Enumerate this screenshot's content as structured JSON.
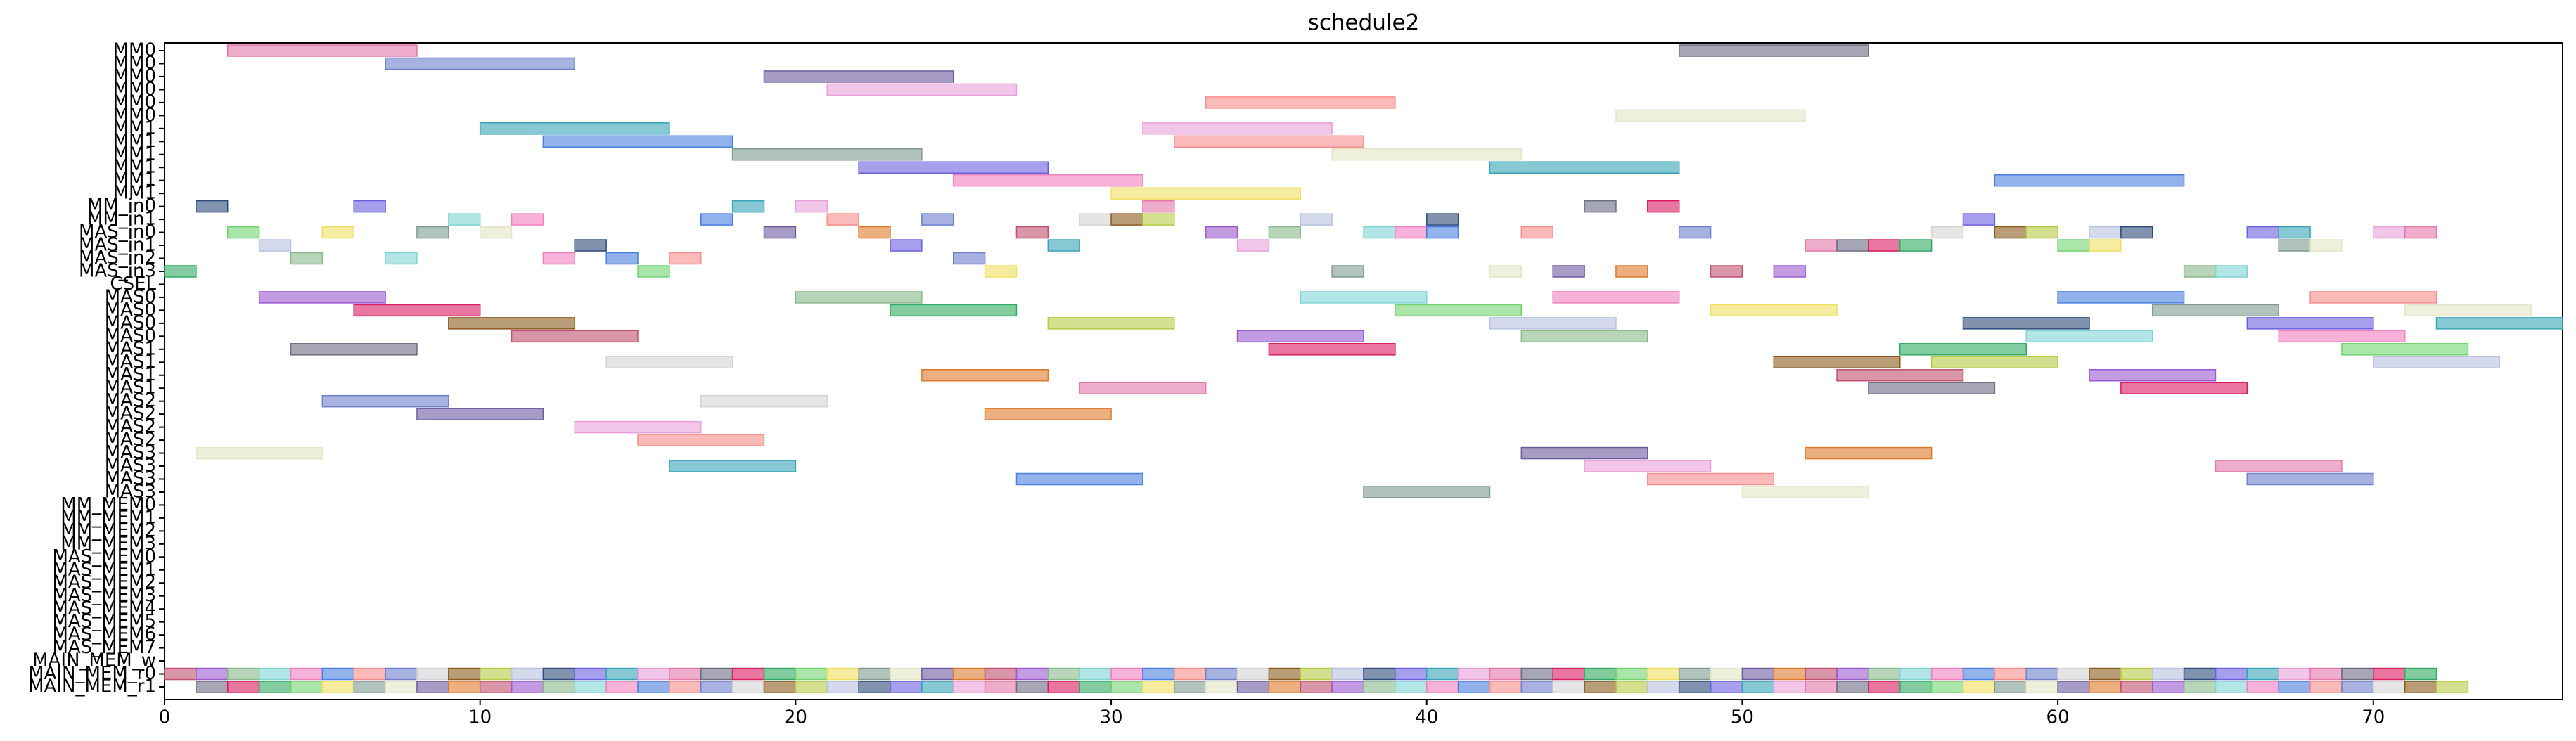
{
  "chart_data": {
    "type": "gantt",
    "title": "schedule2",
    "xlim": [
      0,
      76
    ],
    "xticks": [
      0,
      10,
      20,
      30,
      40,
      50,
      60,
      70
    ],
    "palette": [
      "#e377a9",
      "#b8c2e0",
      "#f78c8c",
      "#9b59d0",
      "#7f9a8f",
      "#6b6b83",
      "#2d4a7a",
      "#6e7fcc",
      "#88b98a",
      "#e2e6c4",
      "#d81b60",
      "#6b5fe0",
      "#d6d3d3",
      "#7fd3d3",
      "#6d5a9e",
      "#2faa60",
      "#35a4b7",
      "#8b5a1e",
      "#f07fc0",
      "#e07a2b",
      "#71d36f",
      "#e8a0d9",
      "#b8c944",
      "#4a7ee0",
      "#c05070",
      "#f0e060"
    ],
    "rows": [
      {
        "label": "MM0",
        "bars": [
          [
            2,
            6
          ],
          [
            48,
            6
          ]
        ]
      },
      {
        "label": "MM0",
        "bars": [
          [
            7,
            6
          ]
        ]
      },
      {
        "label": "MM0",
        "bars": [
          [
            19,
            6
          ]
        ]
      },
      {
        "label": "MM0",
        "bars": [
          [
            21,
            6
          ]
        ]
      },
      {
        "label": "MM0",
        "bars": [
          [
            33,
            6
          ]
        ]
      },
      {
        "label": "MM0",
        "bars": [
          [
            46,
            6
          ]
        ]
      },
      {
        "label": "MM1",
        "bars": [
          [
            10,
            6
          ],
          [
            31,
            6
          ]
        ]
      },
      {
        "label": "MM1",
        "bars": [
          [
            12,
            6
          ],
          [
            32,
            6
          ]
        ]
      },
      {
        "label": "MM1",
        "bars": [
          [
            18,
            6
          ],
          [
            37,
            6
          ]
        ]
      },
      {
        "label": "MM1",
        "bars": [
          [
            22,
            6
          ],
          [
            42,
            6
          ]
        ]
      },
      {
        "label": "MM1",
        "bars": [
          [
            25,
            6
          ],
          [
            58,
            6
          ]
        ]
      },
      {
        "label": "MM1",
        "bars": [
          [
            30,
            6
          ]
        ]
      },
      {
        "label": "MM_in0",
        "bars": [
          [
            1,
            1
          ],
          [
            6,
            1
          ],
          [
            18,
            1
          ],
          [
            20,
            1
          ],
          [
            31,
            1
          ],
          [
            45,
            1
          ],
          [
            47,
            1
          ]
        ]
      },
      {
        "label": "MM_in1",
        "bars": [
          [
            9,
            1
          ],
          [
            11,
            1
          ],
          [
            17,
            1
          ],
          [
            21,
            1
          ],
          [
            24,
            1
          ],
          [
            29,
            1
          ],
          [
            30,
            1
          ],
          [
            31,
            1
          ],
          [
            36,
            1
          ],
          [
            40,
            1
          ],
          [
            57,
            1
          ]
        ]
      },
      {
        "label": "MAS_in0",
        "bars": [
          [
            2,
            1
          ],
          [
            5,
            1
          ],
          [
            8,
            1
          ],
          [
            10,
            1
          ],
          [
            19,
            1
          ],
          [
            22,
            1
          ],
          [
            27,
            1
          ],
          [
            33,
            1
          ],
          [
            35,
            1
          ],
          [
            38,
            1
          ],
          [
            39,
            1
          ],
          [
            40,
            1
          ],
          [
            43,
            1
          ],
          [
            48,
            1
          ],
          [
            56,
            1
          ],
          [
            58,
            1
          ],
          [
            59,
            1
          ],
          [
            61,
            1
          ],
          [
            62,
            1
          ],
          [
            66,
            1
          ],
          [
            67,
            1
          ],
          [
            70,
            1
          ],
          [
            71,
            1
          ]
        ]
      },
      {
        "label": "MAS_in1",
        "bars": [
          [
            3,
            1
          ],
          [
            13,
            1
          ],
          [
            23,
            1
          ],
          [
            28,
            1
          ],
          [
            34,
            1
          ],
          [
            52,
            1
          ],
          [
            53,
            1
          ],
          [
            54,
            1
          ],
          [
            55,
            1
          ],
          [
            60,
            1
          ],
          [
            61,
            1
          ],
          [
            67,
            1
          ],
          [
            68,
            1
          ]
        ]
      },
      {
        "label": "MAS_in2",
        "bars": [
          [
            4,
            1
          ],
          [
            7,
            1
          ],
          [
            12,
            1
          ],
          [
            14,
            1
          ],
          [
            16,
            1
          ],
          [
            25,
            1
          ]
        ]
      },
      {
        "label": "MAS_in3",
        "bars": [
          [
            0,
            1
          ],
          [
            15,
            1
          ],
          [
            26,
            1
          ],
          [
            37,
            1
          ],
          [
            42,
            1
          ],
          [
            44,
            1
          ],
          [
            46,
            1
          ],
          [
            49,
            1
          ],
          [
            51,
            1
          ],
          [
            64,
            1
          ],
          [
            65,
            1
          ]
        ]
      },
      {
        "label": "CSEL",
        "bars": []
      },
      {
        "label": "MAS0",
        "bars": [
          [
            3,
            4
          ],
          [
            20,
            4
          ],
          [
            36,
            4
          ],
          [
            44,
            4
          ],
          [
            60,
            4
          ],
          [
            68,
            4
          ]
        ]
      },
      {
        "label": "MAS0",
        "bars": [
          [
            6,
            4
          ],
          [
            23,
            4
          ],
          [
            39,
            4
          ],
          [
            49,
            4
          ],
          [
            63,
            4
          ],
          [
            71,
            4
          ]
        ]
      },
      {
        "label": "MAS0",
        "bars": [
          [
            9,
            4
          ],
          [
            28,
            4
          ],
          [
            42,
            4
          ],
          [
            57,
            4
          ],
          [
            66,
            4
          ],
          [
            72,
            4
          ]
        ]
      },
      {
        "label": "MAS0",
        "bars": [
          [
            11,
            4
          ],
          [
            34,
            4
          ],
          [
            43,
            4
          ],
          [
            59,
            4
          ],
          [
            67,
            4
          ]
        ]
      },
      {
        "label": "MAS1",
        "bars": [
          [
            4,
            4
          ],
          [
            35,
            4
          ],
          [
            55,
            4
          ],
          [
            69,
            4
          ]
        ]
      },
      {
        "label": "MAS1",
        "bars": [
          [
            14,
            4
          ],
          [
            51,
            4
          ],
          [
            56,
            4
          ],
          [
            70,
            4
          ]
        ]
      },
      {
        "label": "MAS1",
        "bars": [
          [
            24,
            4
          ],
          [
            53,
            4
          ],
          [
            61,
            4
          ]
        ]
      },
      {
        "label": "MAS1",
        "bars": [
          [
            29,
            4
          ],
          [
            54,
            4
          ],
          [
            62,
            4
          ]
        ]
      },
      {
        "label": "MAS2",
        "bars": [
          [
            5,
            4
          ],
          [
            17,
            4
          ]
        ]
      },
      {
        "label": "MAS2",
        "bars": [
          [
            8,
            4
          ],
          [
            26,
            4
          ]
        ]
      },
      {
        "label": "MAS2",
        "bars": [
          [
            13,
            4
          ]
        ]
      },
      {
        "label": "MAS2",
        "bars": [
          [
            15,
            4
          ]
        ]
      },
      {
        "label": "MAS3",
        "bars": [
          [
            1,
            4
          ],
          [
            43,
            4
          ],
          [
            52,
            4
          ]
        ]
      },
      {
        "label": "MAS3",
        "bars": [
          [
            16,
            4
          ],
          [
            45,
            4
          ],
          [
            65,
            4
          ]
        ]
      },
      {
        "label": "MAS3",
        "bars": [
          [
            27,
            4
          ],
          [
            47,
            4
          ],
          [
            66,
            4
          ]
        ]
      },
      {
        "label": "MAS3",
        "bars": [
          [
            38,
            4
          ],
          [
            50,
            4
          ]
        ]
      },
      {
        "label": "MM_MEM0",
        "bars": []
      },
      {
        "label": "MM_MEM1",
        "bars": []
      },
      {
        "label": "MM_MEM2",
        "bars": []
      },
      {
        "label": "MM_MEM3",
        "bars": []
      },
      {
        "label": "MAS_MEM0",
        "bars": []
      },
      {
        "label": "MAS_MEM1",
        "bars": []
      },
      {
        "label": "MAS_MEM2",
        "bars": []
      },
      {
        "label": "MAS_MEM3",
        "bars": []
      },
      {
        "label": "MAS_MEM4",
        "bars": []
      },
      {
        "label": "MAS_MEM5",
        "bars": []
      },
      {
        "label": "MAS_MEM6",
        "bars": []
      },
      {
        "label": "MAS_MEM7",
        "bars": []
      },
      {
        "label": "MAIN_MEM_w",
        "bars": []
      },
      {
        "label": "MAIN_MEM_r0",
        "bars": [
          [
            0,
            1
          ],
          [
            1,
            1
          ],
          [
            2,
            1
          ],
          [
            3,
            1
          ],
          [
            4,
            1
          ],
          [
            5,
            1
          ],
          [
            6,
            1
          ],
          [
            7,
            1
          ],
          [
            8,
            1
          ],
          [
            9,
            1
          ],
          [
            10,
            1
          ],
          [
            11,
            1
          ],
          [
            12,
            1
          ],
          [
            13,
            1
          ],
          [
            14,
            1
          ],
          [
            15,
            1
          ],
          [
            16,
            1
          ],
          [
            17,
            1
          ],
          [
            18,
            1
          ],
          [
            19,
            1
          ],
          [
            20,
            1
          ],
          [
            21,
            1
          ],
          [
            22,
            1
          ],
          [
            23,
            1
          ],
          [
            24,
            1
          ],
          [
            25,
            1
          ],
          [
            26,
            1
          ],
          [
            27,
            1
          ],
          [
            28,
            1
          ],
          [
            29,
            1
          ],
          [
            30,
            1
          ],
          [
            31,
            1
          ],
          [
            32,
            1
          ],
          [
            33,
            1
          ],
          [
            34,
            1
          ],
          [
            35,
            1
          ],
          [
            36,
            1
          ],
          [
            37,
            1
          ],
          [
            38,
            1
          ],
          [
            39,
            1
          ],
          [
            40,
            1
          ],
          [
            41,
            1
          ],
          [
            42,
            1
          ],
          [
            43,
            1
          ],
          [
            44,
            1
          ],
          [
            45,
            1
          ],
          [
            46,
            1
          ],
          [
            47,
            1
          ],
          [
            48,
            1
          ],
          [
            49,
            1
          ],
          [
            50,
            1
          ],
          [
            51,
            1
          ],
          [
            52,
            1
          ],
          [
            53,
            1
          ],
          [
            54,
            1
          ],
          [
            55,
            1
          ],
          [
            56,
            1
          ],
          [
            57,
            1
          ],
          [
            58,
            1
          ],
          [
            59,
            1
          ],
          [
            60,
            1
          ],
          [
            61,
            1
          ],
          [
            62,
            1
          ],
          [
            63,
            1
          ],
          [
            64,
            1
          ],
          [
            65,
            1
          ],
          [
            66,
            1
          ],
          [
            67,
            1
          ],
          [
            68,
            1
          ],
          [
            69,
            1
          ],
          [
            70,
            1
          ],
          [
            71,
            1
          ]
        ]
      },
      {
        "label": "MAIN_MEM_r1",
        "bars": [
          [
            1,
            1
          ],
          [
            2,
            1
          ],
          [
            3,
            1
          ],
          [
            4,
            1
          ],
          [
            5,
            1
          ],
          [
            6,
            1
          ],
          [
            7,
            1
          ],
          [
            8,
            1
          ],
          [
            9,
            1
          ],
          [
            10,
            1
          ],
          [
            11,
            1
          ],
          [
            12,
            1
          ],
          [
            13,
            1
          ],
          [
            14,
            1
          ],
          [
            15,
            1
          ],
          [
            16,
            1
          ],
          [
            17,
            1
          ],
          [
            18,
            1
          ],
          [
            19,
            1
          ],
          [
            20,
            1
          ],
          [
            21,
            1
          ],
          [
            22,
            1
          ],
          [
            23,
            1
          ],
          [
            24,
            1
          ],
          [
            25,
            1
          ],
          [
            26,
            1
          ],
          [
            27,
            1
          ],
          [
            28,
            1
          ],
          [
            29,
            1
          ],
          [
            30,
            1
          ],
          [
            31,
            1
          ],
          [
            32,
            1
          ],
          [
            33,
            1
          ],
          [
            34,
            1
          ],
          [
            35,
            1
          ],
          [
            36,
            1
          ],
          [
            37,
            1
          ],
          [
            38,
            1
          ],
          [
            39,
            1
          ],
          [
            40,
            1
          ],
          [
            41,
            1
          ],
          [
            42,
            1
          ],
          [
            43,
            1
          ],
          [
            44,
            1
          ],
          [
            45,
            1
          ],
          [
            46,
            1
          ],
          [
            47,
            1
          ],
          [
            48,
            1
          ],
          [
            49,
            1
          ],
          [
            50,
            1
          ],
          [
            51,
            1
          ],
          [
            52,
            1
          ],
          [
            53,
            1
          ],
          [
            54,
            1
          ],
          [
            55,
            1
          ],
          [
            56,
            1
          ],
          [
            57,
            1
          ],
          [
            58,
            1
          ],
          [
            59,
            1
          ],
          [
            60,
            1
          ],
          [
            61,
            1
          ],
          [
            62,
            1
          ],
          [
            63,
            1
          ],
          [
            64,
            1
          ],
          [
            65,
            1
          ],
          [
            66,
            1
          ],
          [
            67,
            1
          ],
          [
            68,
            1
          ],
          [
            69,
            1
          ],
          [
            70,
            1
          ],
          [
            71,
            1
          ],
          [
            72,
            1
          ]
        ]
      }
    ]
  }
}
